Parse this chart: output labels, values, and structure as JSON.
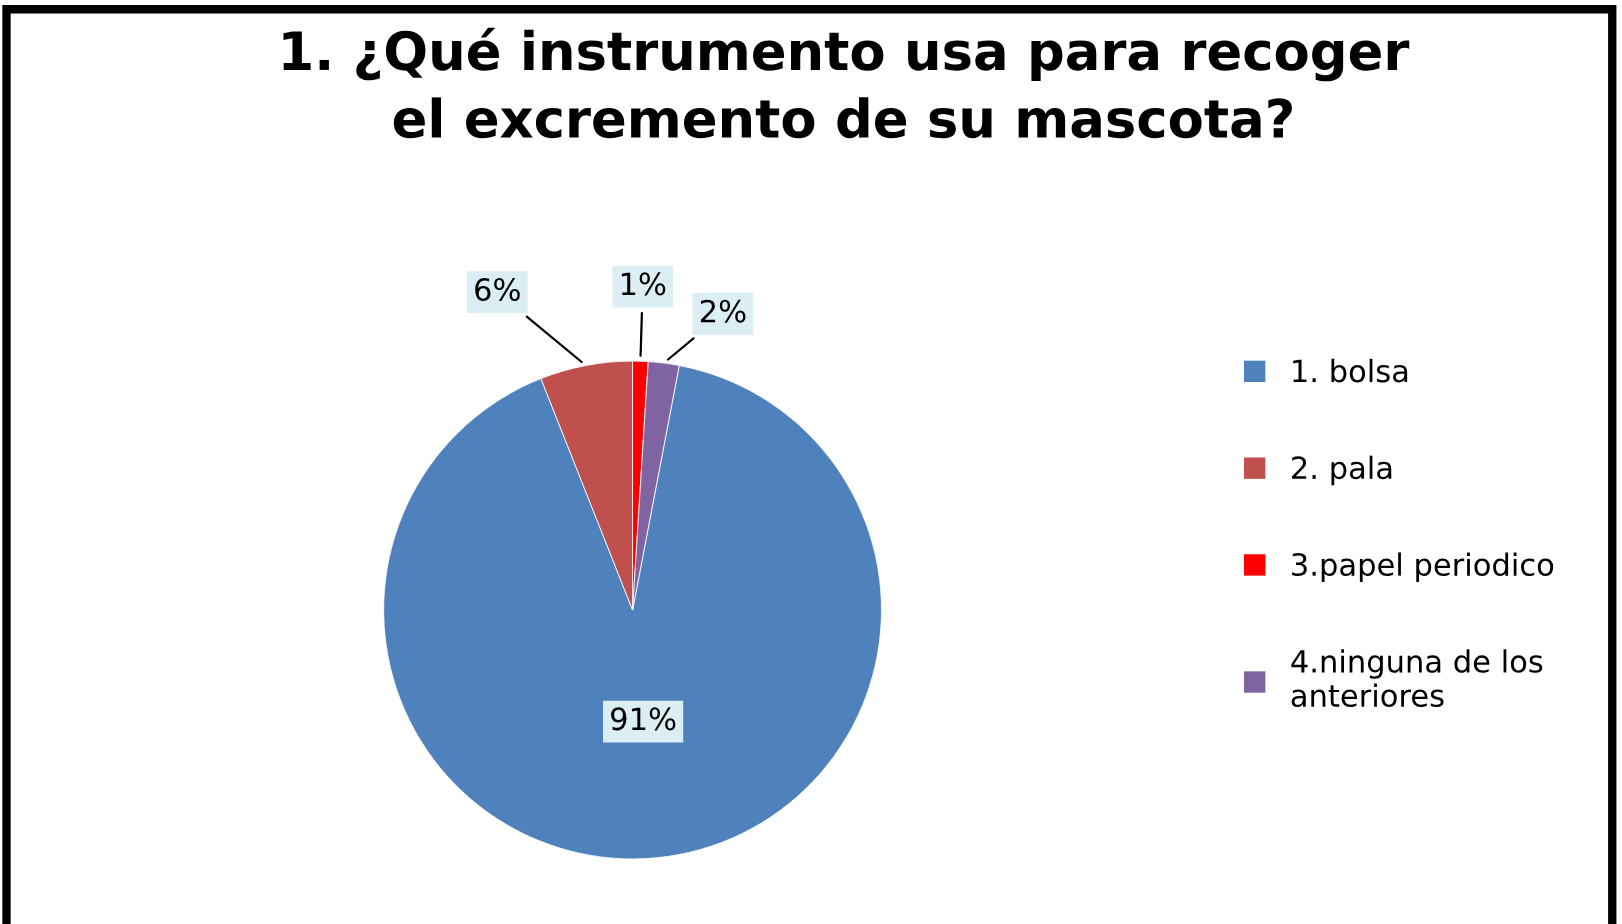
{
  "chart_data": {
    "type": "pie",
    "title": "1. ¿Qué instrumento usa para recoger\nel excremento de su mascota?",
    "categories": [
      "1. bolsa",
      "2. pala",
      "3.papel periodico",
      "4.ninguna de los\nanteriores"
    ],
    "values": [
      91,
      6,
      1,
      2
    ],
    "colors": [
      "#4f81bd",
      "#c0504d",
      "#ff0000",
      "#8064a2"
    ],
    "value_labels": [
      "91%",
      "6%",
      "1%",
      "2%"
    ],
    "legend": "right"
  }
}
